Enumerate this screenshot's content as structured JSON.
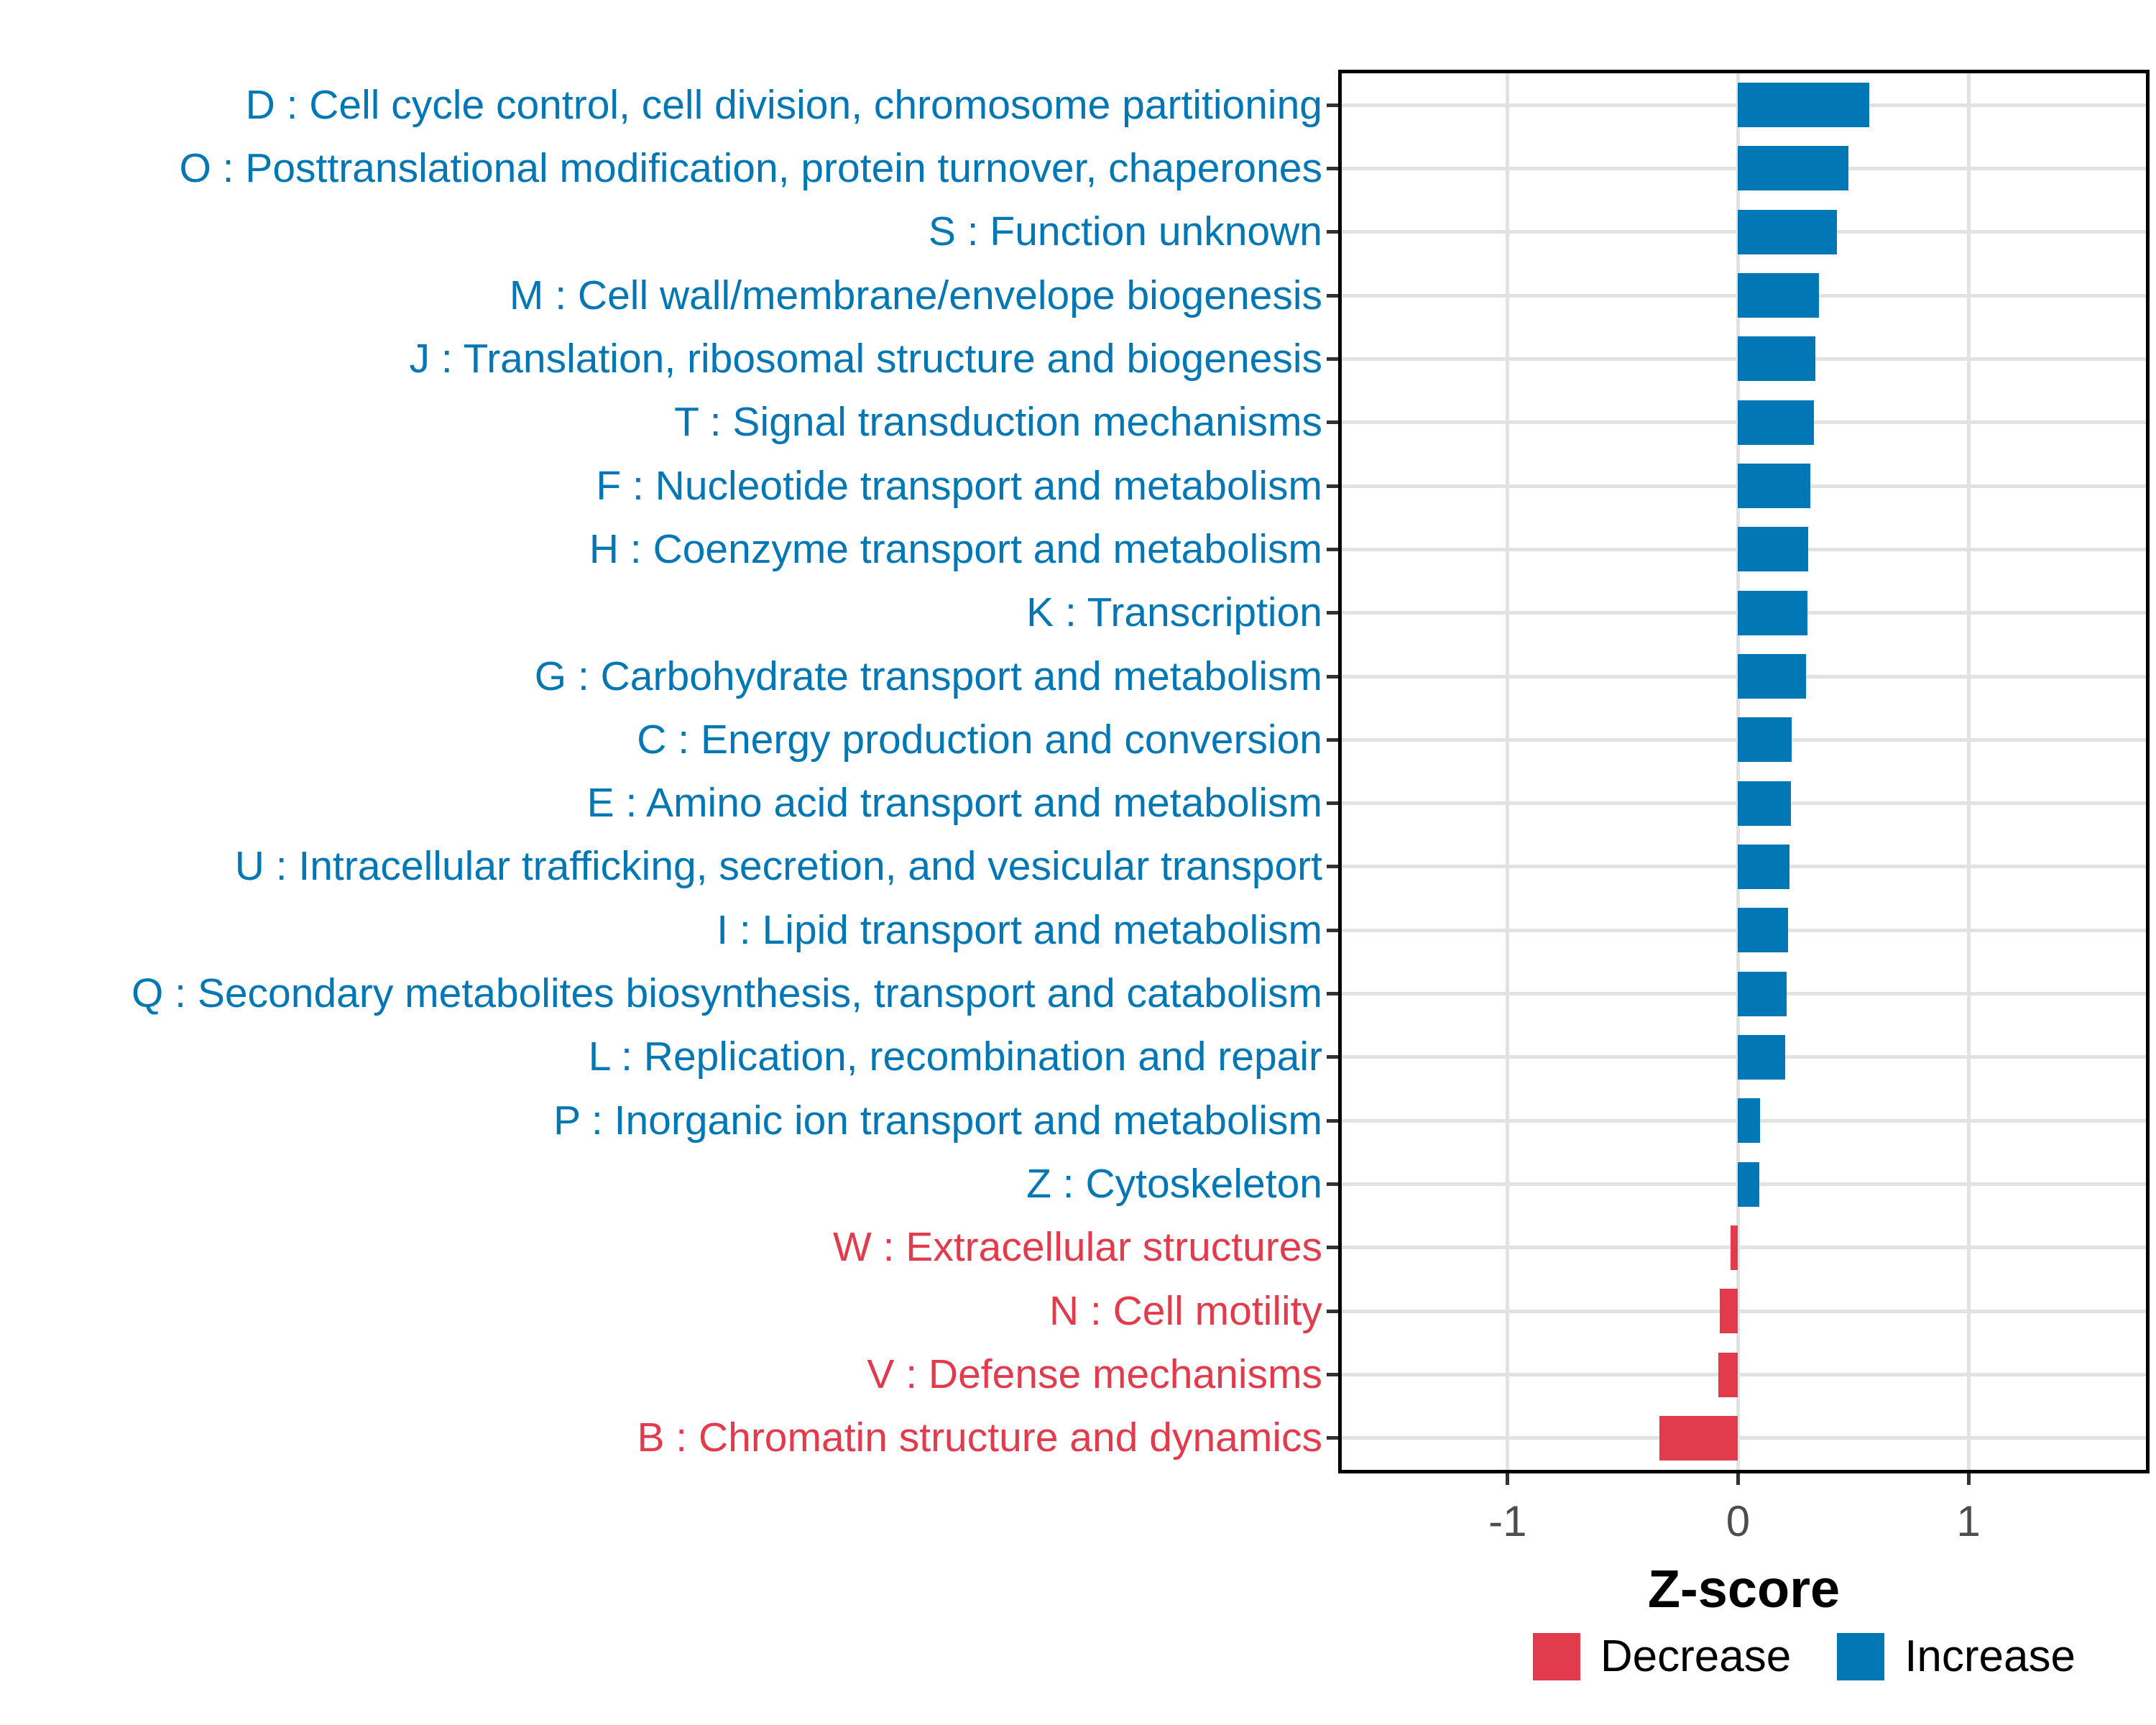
{
  "figure": {
    "background": "#ffffff"
  },
  "chart_data": {
    "type": "bar",
    "orientation": "horizontal",
    "title": "",
    "xlabel": "Z-score",
    "x_axis": {
      "min": -1.72,
      "max": 1.77,
      "ticks": [
        -1,
        0,
        1
      ],
      "tick_labels": [
        "-1",
        "0",
        "1"
      ],
      "grid": true,
      "minor_grid": false
    },
    "colors": {
      "increase": "#0277b5",
      "decrease": "#e23b4c",
      "grid": "#e2e2e2",
      "axis_text": "#4d4d4d",
      "tick": "#333333",
      "panel_border": "#000000"
    },
    "legend": {
      "position": "bottom-right",
      "entries": [
        {
          "label": "Decrease",
          "color": "#e23b4c"
        },
        {
          "label": "Increase",
          "color": "#0277b5"
        }
      ]
    },
    "categories": [
      {
        "code": "D",
        "label": "D : Cell cycle control, cell division, chromosome partitioning",
        "value": 0.57,
        "direction": "increase"
      },
      {
        "code": "O",
        "label": "O : Posttranslational modification, protein turnover, chaperones",
        "value": 0.48,
        "direction": "increase"
      },
      {
        "code": "S",
        "label": "S : Function unknown",
        "value": 0.43,
        "direction": "increase"
      },
      {
        "code": "M",
        "label": "M : Cell wall/membrane/envelope biogenesis",
        "value": 0.35,
        "direction": "increase"
      },
      {
        "code": "J",
        "label": "J : Translation, ribosomal structure and biogenesis",
        "value": 0.335,
        "direction": "increase"
      },
      {
        "code": "T",
        "label": "T : Signal transduction mechanisms",
        "value": 0.33,
        "direction": "increase"
      },
      {
        "code": "F",
        "label": "F : Nucleotide transport and metabolism",
        "value": 0.315,
        "direction": "increase"
      },
      {
        "code": "H",
        "label": "H : Coenzyme transport and metabolism",
        "value": 0.305,
        "direction": "increase"
      },
      {
        "code": "K",
        "label": "K : Transcription",
        "value": 0.3,
        "direction": "increase"
      },
      {
        "code": "G",
        "label": "G : Carbohydrate transport and metabolism",
        "value": 0.295,
        "direction": "increase"
      },
      {
        "code": "C",
        "label": "C : Energy production and conversion",
        "value": 0.233,
        "direction": "increase"
      },
      {
        "code": "E",
        "label": "E : Amino acid transport and metabolism",
        "value": 0.229,
        "direction": "increase"
      },
      {
        "code": "U",
        "label": "U : Intracellular trafficking, secretion, and vesicular transport",
        "value": 0.224,
        "direction": "increase"
      },
      {
        "code": "I",
        "label": "I : Lipid transport and metabolism",
        "value": 0.216,
        "direction": "increase"
      },
      {
        "code": "Q",
        "label": "Q : Secondary metabolites biosynthesis, transport and catabolism",
        "value": 0.21,
        "direction": "increase"
      },
      {
        "code": "L",
        "label": "L : Replication, recombination and repair",
        "value": 0.204,
        "direction": "increase"
      },
      {
        "code": "P",
        "label": "P : Inorganic ion transport and metabolism",
        "value": 0.096,
        "direction": "increase"
      },
      {
        "code": "Z",
        "label": "Z : Cytoskeleton",
        "value": 0.092,
        "direction": "increase"
      },
      {
        "code": "W",
        "label": "W : Extracellular structures",
        "value": -0.034,
        "direction": "decrease"
      },
      {
        "code": "N",
        "label": "N : Cell motility",
        "value": -0.078,
        "direction": "decrease"
      },
      {
        "code": "V",
        "label": "V : Defense mechanisms",
        "value": -0.086,
        "direction": "decrease"
      },
      {
        "code": "B",
        "label": "B : Chromatin structure and dynamics",
        "value": -0.34,
        "direction": "decrease"
      }
    ]
  }
}
